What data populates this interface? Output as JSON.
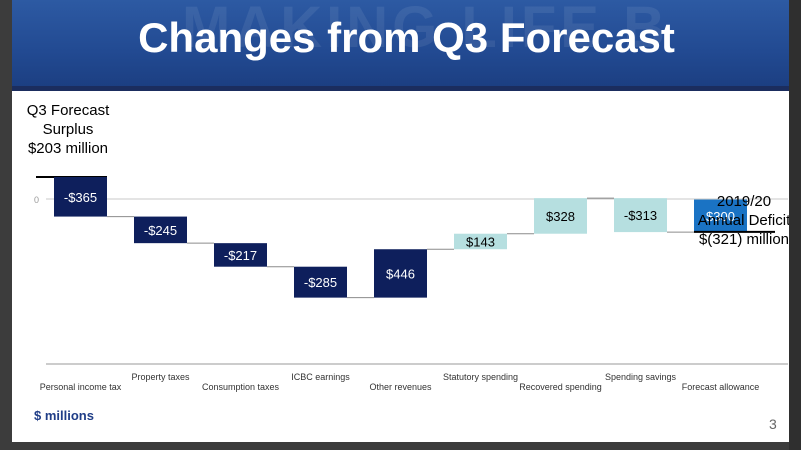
{
  "slide": {
    "title": "Changes from Q3 Forecast",
    "units_label": "$ millions",
    "page_number": "3"
  },
  "callouts": {
    "start": [
      "Q3 Forecast",
      "Surplus",
      "$203 million"
    ],
    "end": [
      "2019/20",
      "Annual Deficit",
      "$(321) million"
    ]
  },
  "chart_data": {
    "type": "bar",
    "subtype": "waterfall",
    "categories": [
      "Personal income tax",
      "Property taxes",
      "Consumption taxes",
      "ICBC earnings",
      "Other revenues",
      "Statutory spending",
      "Recovered spending",
      "Spending savings",
      "Forecast allowance"
    ],
    "values": [
      -365,
      -245,
      -217,
      -285,
      446,
      143,
      328,
      -313,
      300
    ],
    "data_labels": [
      "-$365",
      "-$245",
      "-$217",
      "-$285",
      "$446",
      "$143",
      "$328",
      "-$313",
      "$300"
    ],
    "start_value": 203,
    "end_value": -321,
    "y_tick_labels": [
      "0"
    ],
    "colors": {
      "decrease": "#0e1f5c",
      "revenue_increase": "#0e1f5c",
      "spending_increase": "#b6dfe0",
      "allowance": "#1a73c4",
      "baseline": "#c9c9c9",
      "connector": "#8c8c8c"
    },
    "bar_colors": [
      "#0e1f5c",
      "#0e1f5c",
      "#0e1f5c",
      "#0e1f5c",
      "#0e1f5c",
      "#b6dfe0",
      "#b6dfe0",
      "#b6dfe0",
      "#1a73c4"
    ],
    "label_colors": [
      "#ffffff",
      "#ffffff",
      "#ffffff",
      "#ffffff",
      "#ffffff",
      "#000000",
      "#000000",
      "#000000",
      "#ffffff"
    ]
  }
}
